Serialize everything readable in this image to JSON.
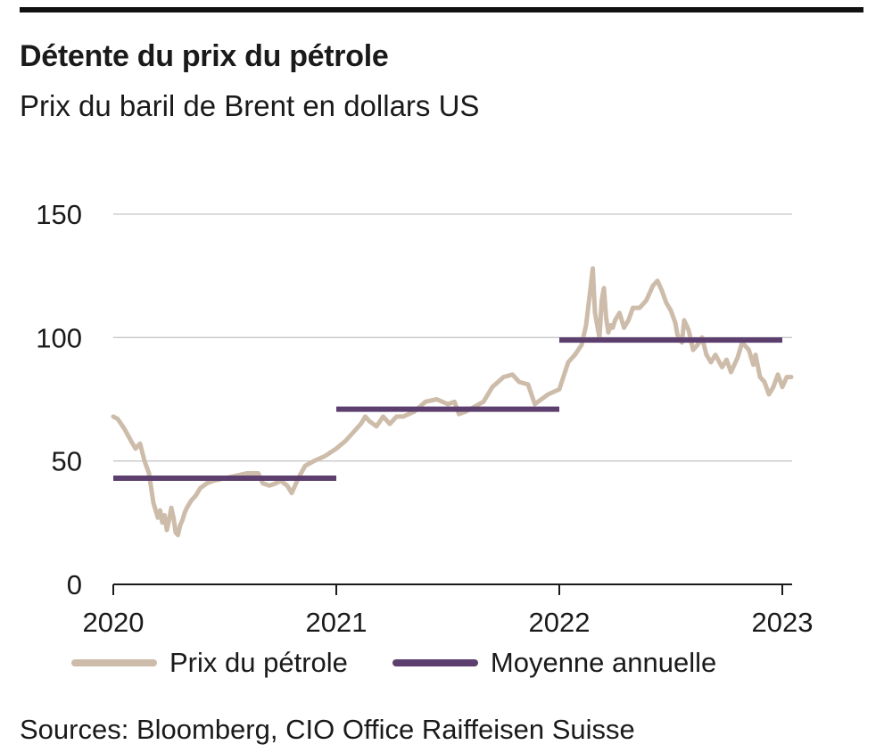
{
  "header": {
    "title": "Détente du prix du pétrole",
    "subtitle": "Prix du baril de Brent en dollars US"
  },
  "footer": {
    "source": "Sources: Bloomberg, CIO Office Raiffeisen Suisse"
  },
  "colors": {
    "oil_price": "#cdbcaa",
    "annual_mean": "#5c3f6e",
    "grid": "#c8c8c8",
    "axis": "#1a1a1a",
    "rule": "#111111"
  },
  "chart_data": {
    "type": "line",
    "title": "Détente du prix du pétrole",
    "subtitle": "Prix du baril de Brent en dollars US",
    "xlabel": "",
    "ylabel": "",
    "xlim": [
      2020,
      2023.05
    ],
    "ylim": [
      0,
      150
    ],
    "y_ticks": [
      0,
      50,
      100,
      150
    ],
    "x_ticks": [
      2020,
      2021,
      2022,
      2023
    ],
    "x_tick_labels": [
      "2020",
      "2021",
      "2022",
      "2023"
    ],
    "grid": true,
    "legend_position": "bottom",
    "series": [
      {
        "name": "Prix du pétrole",
        "x": [
          2020.0,
          2020.02,
          2020.05,
          2020.08,
          2020.1,
          2020.12,
          2020.14,
          2020.16,
          2020.18,
          2020.2,
          2020.21,
          2020.22,
          2020.23,
          2020.24,
          2020.25,
          2020.26,
          2020.27,
          2020.28,
          2020.29,
          2020.3,
          2020.31,
          2020.32,
          2020.33,
          2020.35,
          2020.37,
          2020.39,
          2020.42,
          2020.45,
          2020.5,
          2020.55,
          2020.6,
          2020.65,
          2020.67,
          2020.7,
          2020.73,
          2020.75,
          2020.78,
          2020.8,
          2020.83,
          2020.86,
          2020.9,
          2020.95,
          2021.0,
          2021.04,
          2021.08,
          2021.11,
          2021.13,
          2021.15,
          2021.18,
          2021.21,
          2021.24,
          2021.27,
          2021.3,
          2021.35,
          2021.4,
          2021.45,
          2021.5,
          2021.53,
          2021.55,
          2021.58,
          2021.62,
          2021.66,
          2021.7,
          2021.75,
          2021.79,
          2021.82,
          2021.86,
          2021.89,
          2021.92,
          2021.95,
          2022.0,
          2022.04,
          2022.07,
          2022.1,
          2022.12,
          2022.14,
          2022.15,
          2022.16,
          2022.17,
          2022.18,
          2022.19,
          2022.2,
          2022.21,
          2022.22,
          2022.23,
          2022.24,
          2022.25,
          2022.27,
          2022.29,
          2022.31,
          2022.33,
          2022.36,
          2022.39,
          2022.42,
          2022.44,
          2022.46,
          2022.48,
          2022.5,
          2022.52,
          2022.53,
          2022.55,
          2022.56,
          2022.58,
          2022.6,
          2022.62,
          2022.64,
          2022.66,
          2022.68,
          2022.7,
          2022.73,
          2022.75,
          2022.77,
          2022.8,
          2022.82,
          2022.85,
          2022.87,
          2022.88,
          2022.9,
          2022.92,
          2022.94,
          2022.96,
          2022.98,
          2023.0,
          2023.02,
          2023.04
        ],
        "values": [
          68,
          67,
          63,
          58,
          55,
          57,
          50,
          45,
          33,
          27,
          30,
          25,
          28,
          22,
          26,
          31,
          27,
          21,
          20,
          24,
          26,
          29,
          31,
          34,
          36,
          39,
          41,
          42,
          43,
          44,
          45,
          45,
          41,
          40,
          41,
          42,
          40,
          37,
          43,
          48,
          50,
          52,
          55,
          58,
          62,
          65,
          68,
          66,
          64,
          68,
          65,
          68,
          68,
          70,
          74,
          75,
          73,
          74,
          69,
          70,
          72,
          74,
          80,
          84,
          85,
          82,
          81,
          73,
          75,
          77,
          79,
          90,
          93,
          97,
          105,
          120,
          128,
          110,
          105,
          100,
          115,
          120,
          108,
          102,
          105,
          104,
          107,
          110,
          104,
          107,
          112,
          112,
          115,
          121,
          123,
          119,
          114,
          111,
          106,
          101,
          98,
          107,
          103,
          95,
          97,
          100,
          93,
          90,
          93,
          88,
          91,
          86,
          92,
          98,
          95,
          89,
          93,
          84,
          82,
          77,
          80,
          85,
          80,
          84,
          84
        ]
      },
      {
        "name": "Moyenne annuelle",
        "segments": [
          {
            "x": [
              2020,
              2021
            ],
            "value": 43
          },
          {
            "x": [
              2021,
              2022
            ],
            "value": 71
          },
          {
            "x": [
              2022,
              2023
            ],
            "value": 99
          }
        ]
      }
    ]
  }
}
